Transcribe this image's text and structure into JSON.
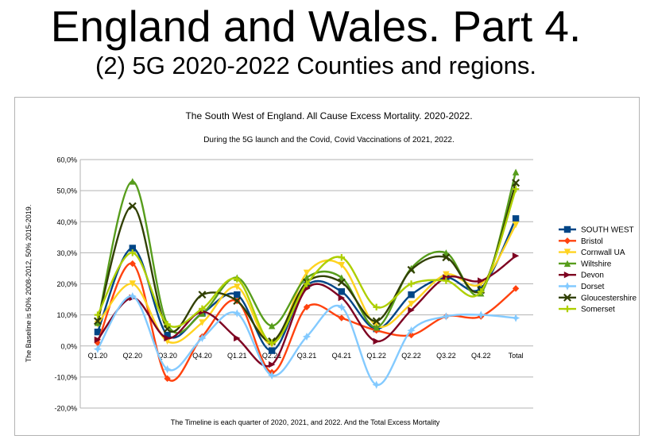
{
  "page": {
    "title": "England and Wales. Part 4.",
    "subtitle": "(2) 5G 2020-2022 Counties and regions."
  },
  "chart_data": {
    "type": "line",
    "title": "The South West of England. All Cause Excess Mortality. 2020-2022.",
    "subtitle": "During the 5G launch and the Covid, Covid Vaccinations of 2021, 2022.",
    "xlabel": "The Timeline is each quarter of 2020, 2021, and 2022. And the Total Excess Mortality",
    "ylabel": "The Baseline is 50% 2008-2012, 50% 2015-2019.",
    "categories": [
      "Q1.20",
      "Q2.20",
      "Q3.20",
      "Q4.20",
      "Q1.21",
      "Q2.21",
      "Q3.21",
      "Q4.21",
      "Q1.22",
      "Q2.22",
      "Q3.22",
      "Q4.22",
      "Total"
    ],
    "ylim": [
      -20,
      60
    ],
    "yticks": [
      -20,
      -10,
      0,
      10,
      20,
      30,
      40,
      50,
      60
    ],
    "ytick_labels": [
      "-20,0%",
      "-10,0%",
      "0,0%",
      "10,0%",
      "20,0%",
      "30,0%",
      "40,0%",
      "50,0%",
      "60,0%"
    ],
    "grid": "horizontal",
    "legend_position": "right",
    "series": [
      {
        "name": "SOUTH WEST",
        "color": "#004586",
        "marker": "square",
        "values": [
          4.5,
          31.5,
          3.5,
          10.5,
          16.5,
          -1.5,
          19.5,
          17.5,
          5.5,
          16.5,
          22,
          18.5,
          41
        ]
      },
      {
        "name": "Bristol",
        "color": "#ff420e",
        "marker": "diamond",
        "values": [
          1,
          26.5,
          -10.5,
          3,
          14.5,
          -8.5,
          12.5,
          9,
          5,
          3.5,
          9.5,
          9.5,
          18.5
        ]
      },
      {
        "name": "Cornwall UA",
        "color": "#ffd320",
        "marker": "triangle-down",
        "values": [
          7,
          20,
          1.5,
          7.5,
          19,
          0.5,
          23.5,
          26,
          6.5,
          13.5,
          23,
          20,
          39
        ]
      },
      {
        "name": "Wiltshire",
        "color": "#579d1c",
        "marker": "triangle-up",
        "values": [
          7.5,
          53,
          7,
          10.5,
          22,
          6.5,
          22,
          22,
          6,
          25,
          30,
          17,
          56
        ]
      },
      {
        "name": "Devon",
        "color": "#7e0021",
        "marker": "triangle-right",
        "values": [
          2,
          15.5,
          2.5,
          11,
          2.5,
          -6,
          18.5,
          15.5,
          1.5,
          11.5,
          22,
          21,
          29
        ]
      },
      {
        "name": "Dorset",
        "color": "#83caff",
        "marker": "star",
        "values": [
          -1,
          16,
          -7.5,
          2.5,
          10.5,
          -9.5,
          3,
          12.5,
          -12.5,
          5,
          9.5,
          10,
          9
        ]
      },
      {
        "name": "Gloucestershire",
        "color": "#314004",
        "marker": "cross",
        "values": [
          8,
          45,
          5.5,
          16.5,
          14.5,
          1.5,
          20.5,
          20.5,
          8,
          24.5,
          28.5,
          18,
          52.5
        ]
      },
      {
        "name": "Somerset",
        "color": "#aecf00",
        "marker": "circle-cross",
        "values": [
          10,
          30,
          7,
          12,
          21.5,
          1,
          20,
          28.5,
          12.5,
          20,
          21,
          17.5,
          50.5
        ]
      }
    ]
  }
}
